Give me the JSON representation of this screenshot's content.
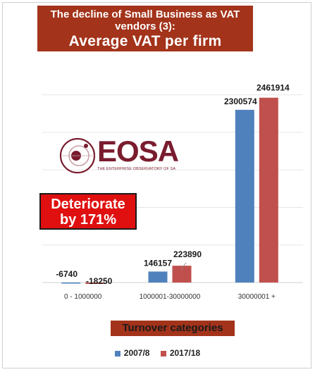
{
  "title": {
    "line1": "The decline of Small Business as VAT vendors (3):",
    "line2": "Average VAT per firm"
  },
  "badge": {
    "line1": "Deteriorate",
    "line2": "by 171%"
  },
  "logo": {
    "word_e": "E",
    "word_o": "O",
    "word_sa": "SA",
    "subtitle": "THE ENTERPRISE OBSERVATORY OF SA"
  },
  "colors": {
    "title_bg": "#a3331a",
    "series1": "#4f81bd",
    "series2": "#c0504d",
    "badge_bg": "#e01010",
    "logo": "#7a1c2e"
  },
  "chart_data": {
    "type": "bar",
    "title": "The decline of Small Business as VAT vendors (3): Average VAT per firm",
    "xlabel": "Turnover categories",
    "ylabel": "",
    "categories": [
      "0 - 1000000",
      "1000001-30000000",
      "30000001 +"
    ],
    "series": [
      {
        "name": "2007/8",
        "values": [
          -6740,
          146157,
          2300574
        ],
        "labels": [
          "-6740",
          "146157",
          "2300574"
        ]
      },
      {
        "name": "2017/18",
        "values": [
          -18250,
          223890,
          2461914
        ],
        "labels": [
          "-18250",
          "223890",
          "2461914"
        ]
      }
    ],
    "ylim": [
      -50000,
      2900000
    ],
    "grid": true,
    "legend": "bottom"
  }
}
